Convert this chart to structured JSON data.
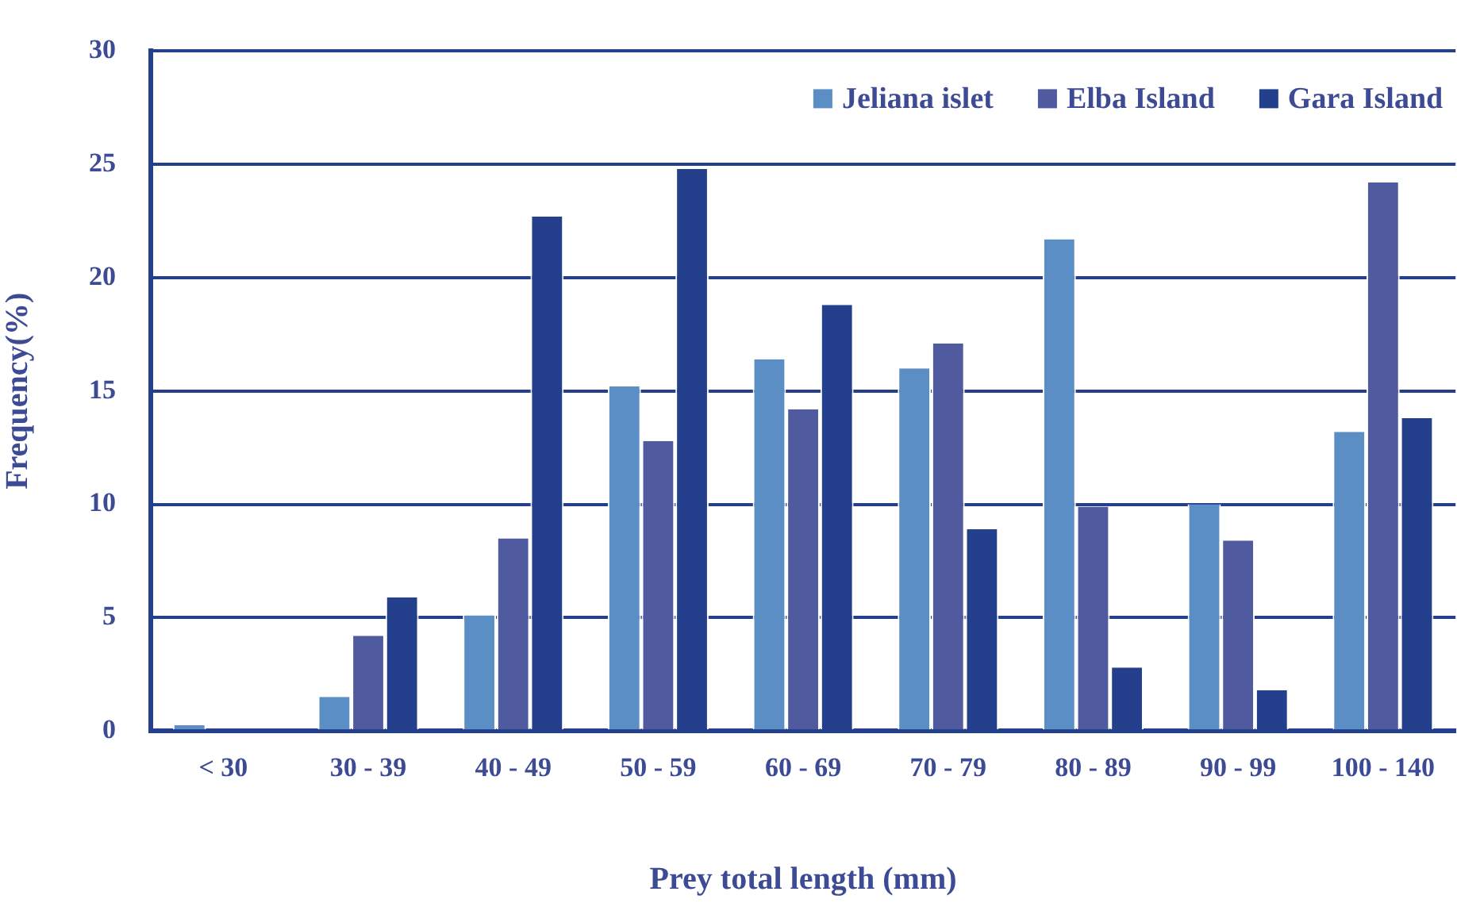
{
  "chart_data": {
    "type": "bar",
    "xlabel": "Prey total length (mm)",
    "ylabel": "Frequency(%)",
    "categories": [
      "< 30",
      "30 - 39",
      "40 - 49",
      "50 - 59",
      "60 - 69",
      "70 - 79",
      "80 - 89",
      "90 - 99",
      "100 - 140"
    ],
    "series": [
      {
        "name": "Jeliana islet",
        "color": "#5b8ec4",
        "values": [
          0.25,
          1.5,
          5.1,
          15.2,
          16.4,
          16.0,
          21.7,
          10.0,
          13.2
        ]
      },
      {
        "name": "Elba Island",
        "color": "#4f5a9f",
        "values": [
          0,
          4.2,
          8.5,
          12.8,
          14.2,
          17.1,
          9.9,
          8.4,
          24.2
        ]
      },
      {
        "name": "Gara Island",
        "color": "#24408c",
        "values": [
          0,
          5.9,
          22.7,
          24.8,
          18.8,
          8.9,
          2.8,
          1.8,
          13.8
        ]
      }
    ],
    "ylim": [
      0,
      30
    ],
    "yticks": [
      0,
      5,
      10,
      15,
      20,
      25,
      30
    ],
    "grid": "y",
    "legend": "top right"
  }
}
